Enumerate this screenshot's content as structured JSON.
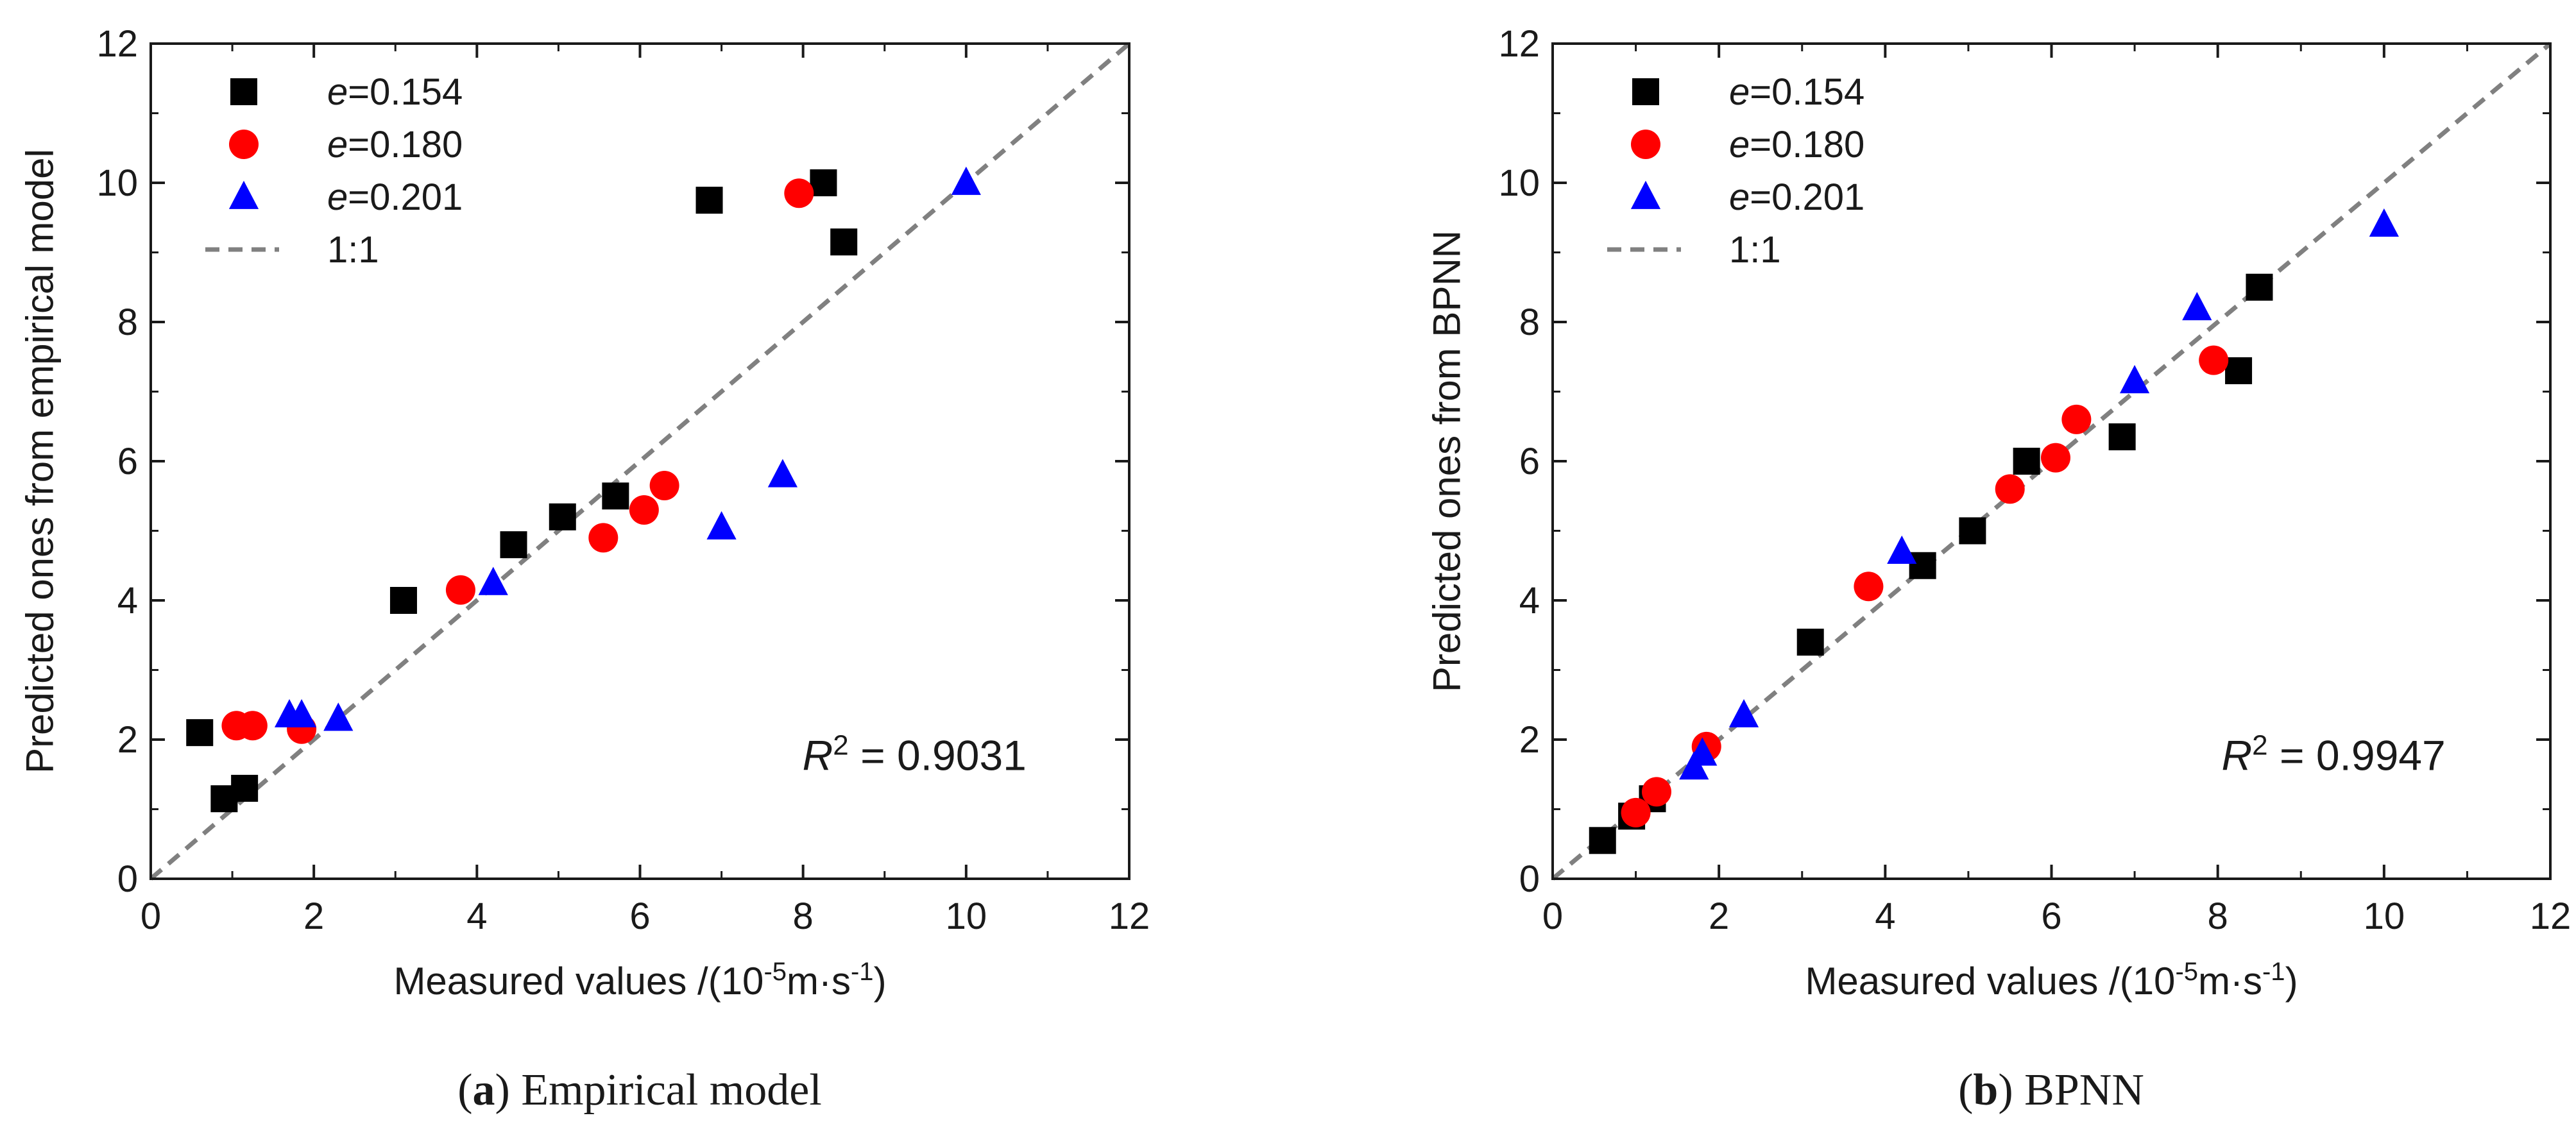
{
  "chart_data": [
    {
      "type": "scatter",
      "panel": "a",
      "caption_letter": "a",
      "caption_text": "Empirical model",
      "xlabel_main": "Measured values /(10",
      "xlabel_exp": "-5",
      "xlabel_unit": "m·s",
      "xlabel_unit_exp": "-1",
      "xlabel_close": ")",
      "ylabel": "Predicted ones from empirical model",
      "xlim": [
        0,
        12
      ],
      "ylim": [
        0,
        12
      ],
      "xticks": [
        0,
        2,
        4,
        6,
        8,
        10,
        12
      ],
      "yticks": [
        0,
        2,
        4,
        6,
        8,
        10,
        12
      ],
      "r2_symbol": "R",
      "r2_sup": "2",
      "r2_value": " = 0.9031",
      "reference_line": {
        "label": "1:1",
        "color": "#808080"
      },
      "series": [
        {
          "name_var": "e",
          "name_value": "=0.154",
          "marker": "square",
          "color": "#000000",
          "x": [
            0.6,
            0.9,
            1.15,
            3.1,
            4.45,
            5.05,
            5.7,
            6.85,
            8.25,
            8.5
          ],
          "y": [
            2.1,
            1.15,
            1.3,
            4.0,
            4.8,
            5.2,
            5.5,
            9.75,
            10.0,
            9.15
          ]
        },
        {
          "name_var": "e",
          "name_value": "=0.180",
          "marker": "circle",
          "color": "#ff0000",
          "x": [
            1.05,
            1.25,
            1.85,
            3.8,
            5.55,
            6.05,
            6.3,
            7.95
          ],
          "y": [
            2.2,
            2.2,
            2.15,
            4.15,
            4.9,
            5.3,
            5.65,
            9.85
          ]
        },
        {
          "name_var": "e",
          "name_value": "=0.201",
          "marker": "triangle",
          "color": "#0000ff",
          "x": [
            1.7,
            1.85,
            2.3,
            4.2,
            7.0,
            7.75,
            10.0
          ],
          "y": [
            2.35,
            2.35,
            2.3,
            4.25,
            5.05,
            5.8,
            10.0
          ]
        }
      ]
    },
    {
      "type": "scatter",
      "panel": "b",
      "caption_letter": "b",
      "caption_text": "BPNN",
      "xlabel_main": "Measured values /(10",
      "xlabel_exp": "-5",
      "xlabel_unit": "m·s",
      "xlabel_unit_exp": "-1",
      "xlabel_close": ")",
      "ylabel": "Predicted ones from BPNN",
      "xlim": [
        0,
        12
      ],
      "ylim": [
        0,
        12
      ],
      "xticks": [
        0,
        2,
        4,
        6,
        8,
        10,
        12
      ],
      "yticks": [
        0,
        2,
        4,
        6,
        8,
        10,
        12
      ],
      "r2_symbol": "R",
      "r2_sup": "2",
      "r2_value": " = 0.9947",
      "reference_line": {
        "label": "1:1",
        "color": "#808080"
      },
      "series": [
        {
          "name_var": "e",
          "name_value": "=0.154",
          "marker": "square",
          "color": "#000000",
          "x": [
            0.6,
            0.95,
            1.2,
            3.1,
            4.45,
            5.05,
            5.7,
            6.85,
            8.25,
            8.5
          ],
          "y": [
            0.55,
            0.9,
            1.15,
            3.4,
            4.5,
            5.0,
            6.0,
            6.35,
            7.3,
            8.5
          ]
        },
        {
          "name_var": "e",
          "name_value": "=0.180",
          "marker": "circle",
          "color": "#ff0000",
          "x": [
            1.0,
            1.25,
            1.85,
            3.8,
            5.5,
            6.05,
            6.3,
            7.95
          ],
          "y": [
            0.95,
            1.25,
            1.9,
            4.2,
            5.6,
            6.05,
            6.6,
            7.45
          ]
        },
        {
          "name_var": "e",
          "name_value": "=0.201",
          "marker": "triangle",
          "color": "#0000ff",
          "x": [
            1.7,
            1.8,
            2.3,
            4.2,
            7.0,
            7.75,
            10.0
          ],
          "y": [
            1.6,
            1.8,
            2.35,
            4.7,
            7.15,
            8.2,
            9.4
          ]
        }
      ]
    }
  ]
}
